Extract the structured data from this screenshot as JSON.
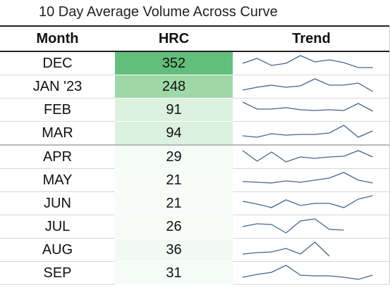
{
  "title": "10 Day Average Volume Across Curve",
  "headers": {
    "month": "Month",
    "hrc": "HRC",
    "trend": "Trend"
  },
  "rows": [
    {
      "month": "DEC",
      "hrc": "352",
      "bg": "#63be7b",
      "trend": [
        0.55,
        0.2,
        0.7,
        0.55,
        0.0,
        0.45,
        0.3,
        0.5,
        0.85,
        0.85
      ]
    },
    {
      "month": "JAN '23",
      "hrc": "248",
      "bg": "#9ed8a9",
      "trend": [
        0.8,
        0.6,
        0.45,
        0.6,
        0.5,
        0.0,
        0.45,
        0.45,
        0.3,
        0.9
      ]
    },
    {
      "month": "FEB",
      "hrc": "91",
      "bg": "#dcf1df",
      "trend": [
        0.0,
        0.5,
        0.5,
        0.4,
        0.55,
        0.6,
        0.55,
        0.6,
        0.1,
        0.65
      ]
    },
    {
      "month": "MAR",
      "hrc": "94",
      "bg": "#ddf1e0",
      "trend": [
        0.75,
        0.85,
        0.6,
        0.7,
        0.65,
        0.65,
        0.55,
        0.0,
        0.85,
        0.4
      ]
    },
    {
      "month": "APR",
      "hrc": "29",
      "bg": "#f5fbf7",
      "trend": [
        0.1,
        0.85,
        0.2,
        0.9,
        0.55,
        0.65,
        0.55,
        0.5,
        0.1,
        0.55
      ]
    },
    {
      "month": "MAY",
      "hrc": "21",
      "bg": "#f8fcf9",
      "trend": [
        0.65,
        0.7,
        0.75,
        0.6,
        0.7,
        0.55,
        0.4,
        0.0,
        0.55,
        0.75
      ]
    },
    {
      "month": "JUN",
      "hrc": "21",
      "bg": "#f8fcf9",
      "trend": [
        0.4,
        0.6,
        0.85,
        0.3,
        0.7,
        0.55,
        0.55,
        0.85,
        0.25,
        0.0
      ]
    },
    {
      "month": "JUL",
      "hrc": "26",
      "bg": "#f6fbf7",
      "trend": [
        0.55,
        0.35,
        0.4,
        1.0,
        0.15,
        0.0,
        0.75,
        0.8
      ]
    },
    {
      "month": "AUG",
      "hrc": "36",
      "bg": "#f3faf5",
      "trend": [
        0.85,
        0.75,
        0.7,
        0.45,
        0.85,
        0.0,
        1.0
      ]
    },
    {
      "month": "SEP",
      "hrc": "31",
      "bg": "#f5fbf7",
      "trend": [
        0.85,
        0.65,
        0.5,
        0.0,
        0.7,
        0.75,
        0.75,
        0.85,
        1.0,
        0.7
      ]
    }
  ]
}
